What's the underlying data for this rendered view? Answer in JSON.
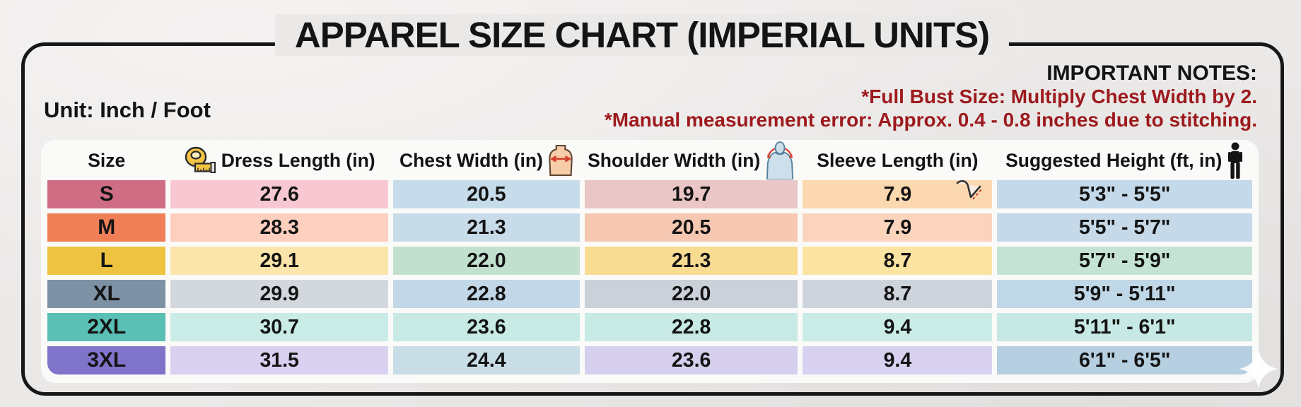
{
  "title": "APPAREL SIZE CHART (IMPERIAL UNITS)",
  "unit_label": "Unit: Inch / Foot",
  "notes": {
    "heading": "IMPORTANT NOTES:",
    "line1": "*Full Bust Size: Multiply Chest Width by 2.",
    "line2": "*Manual measurement error: Approx. 0.4 - 0.8 inches due to stitching."
  },
  "colors": {
    "note_red": "#9d1a1d",
    "card_border": "#171717",
    "page_bg": "#ebe9e8",
    "table_bg": "#fafaf9",
    "text": "#141414"
  },
  "chart_data": {
    "type": "table",
    "title": "APPAREL SIZE CHART (IMPERIAL UNITS)",
    "unit": "Inch / Foot",
    "columns": [
      {
        "label": "Size",
        "icon": null
      },
      {
        "label": "Dress Length (in)",
        "icon": "measuring-tape-icon",
        "icon_pos": "before"
      },
      {
        "label": "Chest Width (in)",
        "icon": "chest-torso-icon",
        "icon_pos": "after"
      },
      {
        "label": "Shoulder Width (in)",
        "icon": "shoulder-body-icon",
        "icon_pos": "after"
      },
      {
        "label": "Sleeve Length (in)",
        "icon": null
      },
      {
        "label": "Suggested Height (ft, in)",
        "icon": "person-height-icon",
        "icon_pos": "after"
      }
    ],
    "sleeve_arm_icon_on_row": "S",
    "rows": [
      {
        "size": "S",
        "size_bg": "#cf6d85",
        "values": [
          "27.6",
          "20.5",
          "19.7",
          "7.9",
          "5'3\" - 5'5\""
        ],
        "value_bgs": [
          "#f8c8d2",
          "#c6dcea",
          "#eac6c6",
          "#fbd8b0",
          "#c4d9e9"
        ]
      },
      {
        "size": "M",
        "size_bg": "#f07f58",
        "values": [
          "28.3",
          "21.3",
          "20.5",
          "7.9",
          "5'5\" - 5'7\""
        ],
        "value_bgs": [
          "#fccfbe",
          "#c8dbe8",
          "#f6c8b2",
          "#fbd4bd",
          "#c6d9e8"
        ]
      },
      {
        "size": "L",
        "size_bg": "#edc341",
        "values": [
          "29.1",
          "22.0",
          "21.3",
          "8.7",
          "5'7\" - 5'9\""
        ],
        "value_bgs": [
          "#fce5ab",
          "#c1e1ce",
          "#f8dc92",
          "#fbe3a2",
          "#c5e3d4"
        ]
      },
      {
        "size": "XL",
        "size_bg": "#7e92a5",
        "values": [
          "29.9",
          "22.8",
          "22.0",
          "8.7",
          "5'9\" - 5'11\""
        ],
        "value_bgs": [
          "#d3d8de",
          "#c2d7e7",
          "#cbd1d9",
          "#ced4db",
          "#bfd7e7"
        ]
      },
      {
        "size": "2XL",
        "size_bg": "#5abfb4",
        "values": [
          "30.7",
          "23.6",
          "22.8",
          "9.4",
          "5'11\" - 6'1\""
        ],
        "value_bgs": [
          "#caece7",
          "#c7eae5",
          "#c8eae5",
          "#caece7",
          "#c7e9e5"
        ]
      },
      {
        "size": "3XL",
        "size_bg": "#7f73ca",
        "values": [
          "31.5",
          "24.4",
          "23.6",
          "9.4",
          "6'1\" - 6'5\""
        ],
        "value_bgs": [
          "#dad1f1",
          "#c9dde7",
          "#d7cfee",
          "#d9d1f0",
          "#b6cfe1"
        ]
      }
    ]
  }
}
